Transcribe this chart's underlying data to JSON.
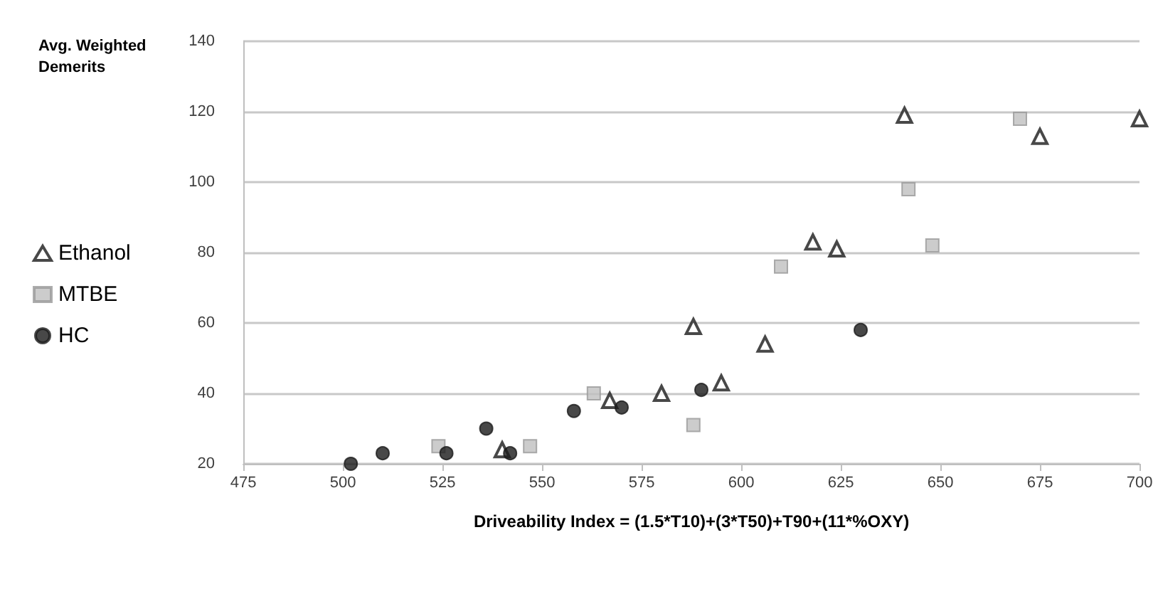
{
  "chart_data": {
    "type": "scatter",
    "xlabel": "Driveability Index = (1.5*T10)+(3*T50)+T90+(11*%OXY)",
    "ylabel": "Avg. Weighted Demerits",
    "xlim": [
      475,
      700
    ],
    "xticks": [
      475,
      500,
      525,
      550,
      575,
      600,
      625,
      650,
      675,
      700
    ],
    "ylim": [
      20,
      140
    ],
    "yticks": [
      20,
      40,
      60,
      80,
      100,
      120,
      140
    ],
    "grid": "y",
    "legend": "left",
    "series": [
      {
        "name": "Ethanol",
        "color": "#1a1a1a",
        "marker": "triangle",
        "x": [
          540,
          567,
          580,
          588,
          595,
          606,
          618,
          624,
          641,
          675,
          700
        ],
        "values": [
          24,
          38,
          40,
          59,
          43,
          54,
          83,
          81,
          119,
          113,
          118
        ]
      },
      {
        "name": "MTBE",
        "color": "#bfbfbf",
        "marker": "square",
        "x": [
          524,
          547,
          563,
          588,
          610,
          642,
          648,
          670
        ],
        "values": [
          25,
          25,
          40,
          31,
          76,
          98,
          82,
          118
        ]
      },
      {
        "name": "HC",
        "color": "#1a1a1a",
        "marker": "circle",
        "x": [
          502,
          510,
          526,
          536,
          542,
          558,
          570,
          590,
          630
        ],
        "values": [
          20,
          23,
          23,
          30,
          23,
          35,
          36,
          41,
          58
        ]
      }
    ]
  }
}
